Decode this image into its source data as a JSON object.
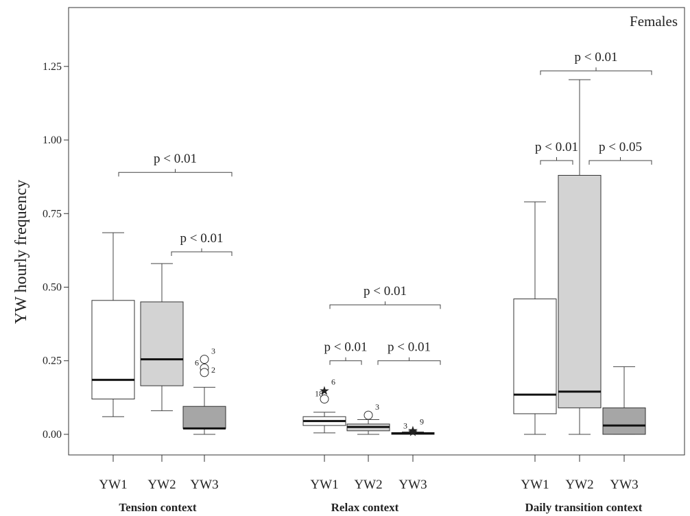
{
  "chart_data": {
    "type": "box",
    "panel_title": "Females",
    "ylabel": "YW hourly frequency",
    "xlabel": "",
    "ylim": [
      -0.07,
      1.45
    ],
    "yticks": [
      "0.00",
      "0.25",
      "0.50",
      "0.75",
      "1.00",
      "1.25"
    ],
    "grid": false,
    "legend": "none",
    "colors": {
      "YW1": "#ffffff",
      "YW2": "#d3d3d3",
      "YW3": "#a6a6a6"
    },
    "groups": [
      {
        "label": "Tension context",
        "boxes": [
          {
            "category": "YW1",
            "min": 0.06,
            "q1": 0.12,
            "median": 0.185,
            "q3": 0.455,
            "max": 0.685,
            "outliers": []
          },
          {
            "category": "YW2",
            "min": 0.08,
            "q1": 0.165,
            "median": 0.255,
            "q3": 0.45,
            "max": 0.58,
            "outliers": []
          },
          {
            "category": "YW3",
            "min": 0.0,
            "q1": 0.02,
            "median": 0.02,
            "q3": 0.095,
            "max": 0.16,
            "outliers": [
              {
                "value": 0.255,
                "marker": "circle",
                "label": "3"
              },
              {
                "value": 0.225,
                "marker": "circle",
                "label": "6"
              },
              {
                "value": 0.21,
                "marker": "circle",
                "label": "2"
              }
            ]
          }
        ],
        "comparisons": [
          {
            "from": "YW1",
            "to": "YW3",
            "label": "p < 0.01",
            "y": 0.89
          },
          {
            "from": "YW2",
            "to": "YW3",
            "label": "p < 0.01",
            "y": 0.62
          }
        ]
      },
      {
        "label": "Relax context",
        "boxes": [
          {
            "category": "YW1",
            "min": 0.005,
            "q1": 0.03,
            "median": 0.045,
            "q3": 0.06,
            "max": 0.075,
            "outliers": [
              {
                "value": 0.15,
                "marker": "star",
                "label": "6"
              },
              {
                "value": 0.12,
                "marker": "circle",
                "label": "18"
              }
            ]
          },
          {
            "category": "YW2",
            "min": 0.0,
            "q1": 0.012,
            "median": 0.025,
            "q3": 0.035,
            "max": 0.05,
            "outliers": [
              {
                "value": 0.065,
                "marker": "circle",
                "label": "3"
              }
            ]
          },
          {
            "category": "YW3",
            "min": 0.0,
            "q1": 0.0,
            "median": 0.003,
            "q3": 0.006,
            "max": 0.008,
            "outliers": [
              {
                "value": 0.015,
                "marker": "star",
                "label": "9"
              },
              {
                "value": 0.01,
                "marker": "star",
                "label": "3"
              }
            ]
          }
        ],
        "comparisons": [
          {
            "from": "YW1",
            "to": "YW3",
            "label": "p < 0.01",
            "y": 0.44
          },
          {
            "from": "YW1",
            "to": "YW2",
            "label": "p < 0.01",
            "y": 0.25
          },
          {
            "from": "YW2",
            "to": "YW3",
            "label": "p < 0.01",
            "y": 0.25
          }
        ]
      },
      {
        "label": "Daily transition context",
        "boxes": [
          {
            "category": "YW1",
            "min": 0.0,
            "q1": 0.07,
            "median": 0.135,
            "q3": 0.46,
            "max": 0.79,
            "outliers": []
          },
          {
            "category": "YW2",
            "min": 0.0,
            "q1": 0.09,
            "median": 0.145,
            "q3": 0.88,
            "max": 1.205,
            "outliers": []
          },
          {
            "category": "YW3",
            "min": 0.0,
            "q1": 0.0,
            "median": 0.03,
            "q3": 0.09,
            "max": 0.23,
            "outliers": []
          }
        ],
        "comparisons": [
          {
            "from": "YW1",
            "to": "YW3",
            "label": "p < 0.01",
            "y": 1.235
          },
          {
            "from": "YW1",
            "to": "YW2",
            "label": "p < 0.01",
            "y": 0.93
          },
          {
            "from": "YW2",
            "to": "YW3",
            "label": "p < 0.05",
            "y": 0.93
          }
        ]
      }
    ]
  }
}
